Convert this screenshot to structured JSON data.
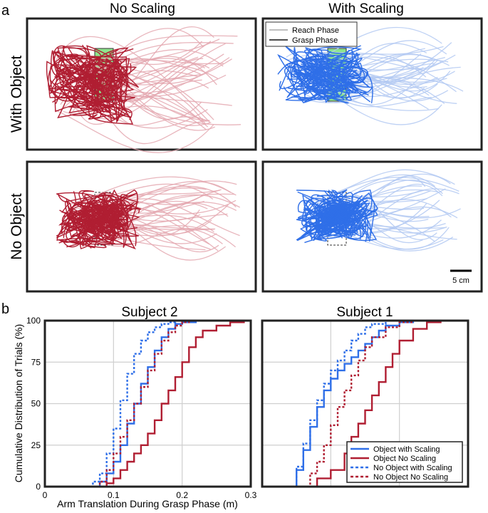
{
  "figure": {
    "panel_a": "a",
    "panel_b": "b",
    "col_labels": [
      "No Scaling",
      "With Scaling"
    ],
    "row_labels": [
      "With Object",
      "No Object"
    ],
    "inset_legend": [
      "Reach Phase",
      "Grasp Phase"
    ],
    "scale_bar": "5 cm"
  },
  "colors": {
    "red": "#b01e32",
    "red_light": "#e4a8b0",
    "blue": "#2f6fe8",
    "blue_light": "#b3c9f2",
    "target": "#8ce58c"
  },
  "chart_data": [
    {
      "type": "line",
      "title": "Subject 2",
      "xlabel": "Arm Translation During Grasp Phase (m)",
      "ylabel": "Cumulative Distribution of Trials (%)",
      "xlim": [
        0,
        0.3
      ],
      "ylim": [
        0,
        100
      ],
      "xticks": [
        "0",
        "0.1",
        "0.2",
        "0.3"
      ],
      "yticks": [
        "0",
        "25",
        "50",
        "75",
        "100"
      ],
      "series": [
        {
          "name": "Object with Scaling",
          "style": "solid",
          "color": "blue",
          "x": [
            0.055,
            0.08,
            0.09,
            0.1,
            0.11,
            0.12,
            0.13,
            0.14,
            0.15,
            0.16,
            0.17,
            0.18,
            0.19,
            0.2,
            0.22,
            0.29
          ],
          "y": [
            0,
            3,
            8,
            15,
            25,
            38,
            50,
            62,
            72,
            82,
            90,
            95,
            98,
            99,
            100,
            100
          ]
        },
        {
          "name": "Object No Scaling",
          "style": "solid",
          "color": "red",
          "x": [
            0.07,
            0.09,
            0.1,
            0.11,
            0.12,
            0.13,
            0.14,
            0.15,
            0.16,
            0.17,
            0.18,
            0.19,
            0.2,
            0.21,
            0.22,
            0.23,
            0.25,
            0.27,
            0.29
          ],
          "y": [
            0,
            2,
            5,
            10,
            15,
            20,
            25,
            32,
            40,
            50,
            58,
            66,
            75,
            84,
            90,
            94,
            97,
            99,
            100
          ]
        },
        {
          "name": "No Object with Scaling",
          "style": "dashed",
          "color": "blue",
          "x": [
            0.05,
            0.07,
            0.08,
            0.09,
            0.1,
            0.11,
            0.12,
            0.13,
            0.14,
            0.15,
            0.16,
            0.17,
            0.18,
            0.19,
            0.2,
            0.22
          ],
          "y": [
            0,
            3,
            8,
            20,
            35,
            52,
            68,
            80,
            88,
            93,
            96,
            98,
            99,
            100,
            100,
            100
          ]
        },
        {
          "name": "No Object No Scaling",
          "style": "dashed",
          "color": "red",
          "x": [
            0.06,
            0.08,
            0.09,
            0.1,
            0.11,
            0.12,
            0.13,
            0.14,
            0.15,
            0.16,
            0.17,
            0.18,
            0.19,
            0.2,
            0.21,
            0.24
          ],
          "y": [
            0,
            3,
            10,
            20,
            30,
            40,
            50,
            60,
            70,
            80,
            88,
            93,
            97,
            99,
            100,
            100
          ]
        }
      ]
    },
    {
      "type": "line",
      "title": "Subject 1",
      "xlim": [
        0,
        0.3
      ],
      "ylim": [
        0,
        100
      ],
      "legend": "bottom-right",
      "legend_entries": [
        "Object with Scaling",
        "Object No Scaling",
        "No Object with Scaling",
        "No Object No Scaling"
      ],
      "series": [
        {
          "name": "Object with Scaling",
          "style": "solid",
          "color": "blue",
          "x": [
            0.04,
            0.05,
            0.06,
            0.07,
            0.08,
            0.09,
            0.1,
            0.11,
            0.12,
            0.13,
            0.14,
            0.15,
            0.16,
            0.17,
            0.18,
            0.2,
            0.22,
            0.24,
            0.26
          ],
          "y": [
            0,
            10,
            22,
            36,
            48,
            58,
            65,
            70,
            74,
            78,
            82,
            86,
            90,
            94,
            97,
            99,
            100,
            100,
            100
          ]
        },
        {
          "name": "Object No Scaling",
          "style": "solid",
          "color": "red",
          "x": [
            0.06,
            0.08,
            0.1,
            0.12,
            0.13,
            0.14,
            0.15,
            0.16,
            0.17,
            0.18,
            0.19,
            0.2,
            0.22,
            0.24,
            0.26
          ],
          "y": [
            0,
            5,
            10,
            20,
            30,
            38,
            46,
            55,
            63,
            72,
            80,
            88,
            95,
            99,
            100
          ]
        },
        {
          "name": "No Object with Scaling",
          "style": "dashed",
          "color": "blue",
          "x": [
            0.04,
            0.05,
            0.06,
            0.07,
            0.08,
            0.09,
            0.1,
            0.11,
            0.12,
            0.13,
            0.14,
            0.15,
            0.16,
            0.18,
            0.2,
            0.24
          ],
          "y": [
            0,
            12,
            26,
            40,
            52,
            62,
            70,
            76,
            82,
            88,
            92,
            96,
            98,
            100,
            100,
            100
          ]
        },
        {
          "name": "No Object No Scaling",
          "style": "dashed",
          "color": "red",
          "x": [
            0.05,
            0.07,
            0.08,
            0.09,
            0.1,
            0.11,
            0.12,
            0.13,
            0.14,
            0.15,
            0.16,
            0.18,
            0.2,
            0.22,
            0.25
          ],
          "y": [
            0,
            8,
            15,
            25,
            37,
            48,
            58,
            67,
            76,
            84,
            90,
            96,
            99,
            100,
            100
          ]
        }
      ]
    }
  ]
}
